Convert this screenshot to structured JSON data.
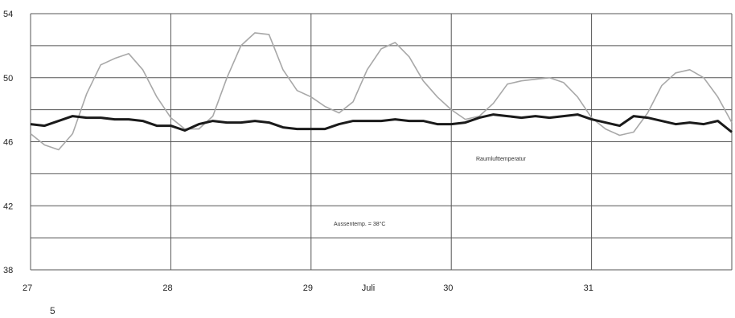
{
  "chart_data": {
    "type": "line",
    "title": "",
    "xlabel": "Juli",
    "ylabel": "",
    "x_ticks": [
      "27",
      "28",
      "29",
      "30",
      "31"
    ],
    "xlim": [
      27,
      32
    ],
    "y_ticks": [
      "38",
      "42",
      "46",
      "50",
      "54"
    ],
    "ylim": [
      38,
      54
    ],
    "grid": true,
    "series": [
      {
        "x": [
          27.0,
          27.1,
          27.2,
          27.3,
          27.4,
          27.5,
          27.6,
          27.7,
          27.8,
          27.9,
          28.0,
          28.1,
          28.2,
          28.3,
          28.4,
          28.5,
          28.6,
          28.7,
          28.8,
          28.9,
          29.0,
          29.1,
          29.2,
          29.3,
          29.4,
          29.5,
          29.6,
          29.7,
          29.8,
          29.9,
          30.0,
          30.1,
          30.2,
          30.3,
          30.4,
          30.5,
          30.6,
          30.7,
          30.8,
          30.9,
          31.0,
          31.1,
          31.2,
          31.3,
          31.4,
          31.5,
          31.6,
          31.7,
          31.8,
          31.9,
          32.0
        ],
        "values": [
          46.5,
          45.8,
          45.5,
          46.5,
          49.0,
          50.8,
          51.2,
          51.5,
          50.5,
          48.8,
          47.5,
          46.8,
          46.8,
          47.6,
          50.0,
          52.0,
          52.8,
          52.7,
          50.5,
          49.2,
          48.8,
          48.2,
          47.8,
          48.5,
          50.5,
          51.8,
          52.2,
          51.3,
          49.8,
          48.8,
          48.0,
          47.4,
          47.6,
          48.4,
          49.6,
          49.8,
          49.9,
          50.0,
          49.7,
          48.8,
          47.5,
          46.8,
          46.4,
          46.6,
          47.8,
          49.5,
          50.3,
          50.5,
          50.0,
          48.8,
          47.2
        ],
        "color": "#a8a8a8"
      },
      {
        "x": [
          27.0,
          27.1,
          27.2,
          27.3,
          27.4,
          27.5,
          27.6,
          27.7,
          27.8,
          27.9,
          28.0,
          28.1,
          28.2,
          28.3,
          28.4,
          28.5,
          28.6,
          28.7,
          28.8,
          28.9,
          29.0,
          29.1,
          29.2,
          29.3,
          29.4,
          29.5,
          29.6,
          29.7,
          29.8,
          29.9,
          30.0,
          30.1,
          30.2,
          30.3,
          30.4,
          30.5,
          30.6,
          30.7,
          30.8,
          30.9,
          31.0,
          31.1,
          31.2,
          31.3,
          31.4,
          31.5,
          31.6,
          31.7,
          31.8,
          31.9,
          32.0
        ],
        "values": [
          47.1,
          47.0,
          47.3,
          47.6,
          47.5,
          47.5,
          47.4,
          47.4,
          47.3,
          47.0,
          47.0,
          46.7,
          47.1,
          47.3,
          47.2,
          47.2,
          47.3,
          47.2,
          46.9,
          46.8,
          46.8,
          46.8,
          47.1,
          47.3,
          47.3,
          47.3,
          47.4,
          47.3,
          47.3,
          47.1,
          47.1,
          47.2,
          47.5,
          47.7,
          47.6,
          47.5,
          47.6,
          47.5,
          47.6,
          47.7,
          47.4,
          47.2,
          47.0,
          47.6,
          47.5,
          47.3,
          47.1,
          47.2,
          47.1,
          47.3,
          46.6
        ],
        "color": "#1a1a1a"
      }
    ],
    "annotations": [
      "Raumlufttemperatur",
      "Aussentemp. = 38°C"
    ]
  },
  "page_number": "5"
}
